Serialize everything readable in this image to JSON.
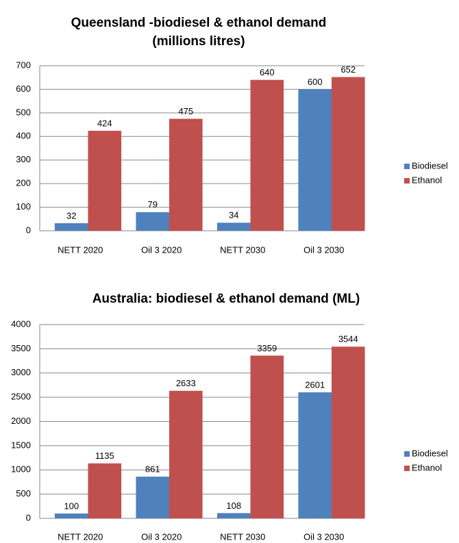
{
  "chart_data": [
    {
      "type": "bar",
      "title": "Queensland -biodiesel & ethanol demand (millions litres)",
      "categories": [
        "NETT 2020",
        "Oil 3 2020",
        "NETT 2030",
        "Oil 3 2030"
      ],
      "series": [
        {
          "name": "Biodiesel",
          "color": "#4f81bd",
          "values": [
            32,
            79,
            34,
            600
          ]
        },
        {
          "name": "Ethanol",
          "color": "#c0504d",
          "values": [
            424,
            475,
            640,
            652
          ]
        }
      ],
      "ylim": [
        0,
        700
      ],
      "yticks": [
        0,
        100,
        200,
        300,
        400,
        500,
        600,
        700
      ],
      "grid": true,
      "legend": "right"
    },
    {
      "type": "bar",
      "title": "Australia: biodiesel & ethanol demand (ML)",
      "categories": [
        "NETT 2020",
        "Oil 3 2020",
        "NETT 2030",
        "Oil 3 2030"
      ],
      "series": [
        {
          "name": "Biodiesel",
          "color": "#4f81bd",
          "values": [
            100,
            861,
            108,
            2601
          ]
        },
        {
          "name": "Ethanol",
          "color": "#c0504d",
          "values": [
            1135,
            2633,
            3359,
            3544
          ]
        }
      ],
      "ylim": [
        0,
        4000
      ],
      "yticks": [
        0,
        500,
        1000,
        1500,
        2000,
        2500,
        3000,
        3500,
        4000
      ],
      "grid": true,
      "legend": "right"
    }
  ]
}
